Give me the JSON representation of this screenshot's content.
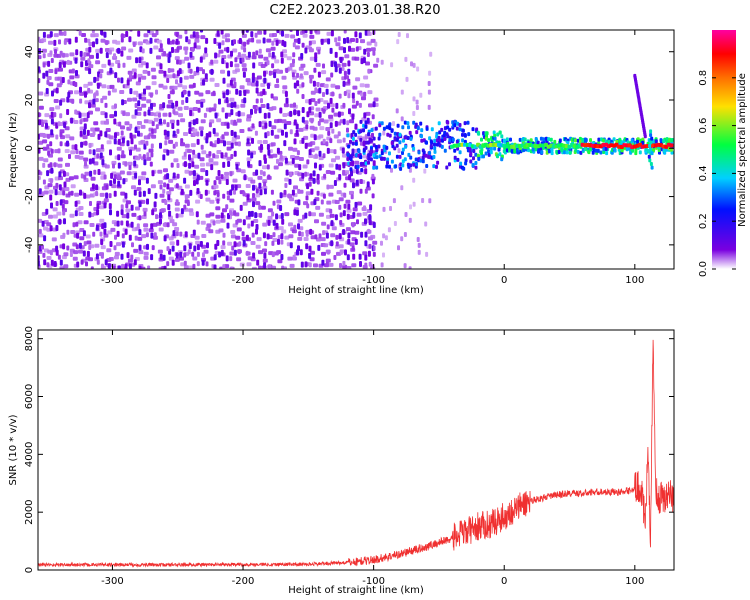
{
  "title": "C2E2.2023.203.01.38.R20",
  "chart_data": [
    {
      "type": "heatmap",
      "xlabel": "Height of straight line (km)",
      "ylabel": "Frequency (Hz)",
      "xlim": [
        -357,
        130
      ],
      "ylim": [
        -50,
        49
      ],
      "xticks": [
        -300,
        -200,
        -100,
        0,
        100
      ],
      "yticks": [
        -40,
        -20,
        0,
        20,
        40
      ],
      "colorbar": {
        "label": "Normalized spectral amplitude",
        "range": [
          0,
          1
        ],
        "ticks": [
          0.0,
          0.2,
          0.4,
          0.6,
          0.8
        ],
        "colors": [
          "#ffffff",
          "#7a00e0",
          "#0010ff",
          "#00d0ff",
          "#00ff40",
          "#ffe000",
          "#ff7000",
          "#ff0000",
          "#ff00a0"
        ]
      },
      "features": {
        "noise_region_x": [
          -357,
          -100
        ],
        "tail_noise_x": [
          -100,
          -55
        ],
        "narrowband_line": {
          "x_start": -120,
          "x_end": 130,
          "frequency_hz": 1
        },
        "chirp_line": {
          "x_start": 100,
          "x_end": 108,
          "f_start": 30,
          "f_end": 5
        },
        "burst_x": 112
      }
    },
    {
      "type": "line",
      "xlabel": "Height of straight line (km)",
      "ylabel": "SNR (10 * v/v)",
      "xlim": [
        -357,
        130
      ],
      "ylim": [
        0,
        8300
      ],
      "xticks": [
        -300,
        -200,
        -100,
        0,
        100
      ],
      "yticks": [
        0,
        2000,
        4000,
        6000,
        8000
      ],
      "color": "#f03030",
      "series": [
        {
          "x": [
            -357,
            -300,
            -250,
            -200,
            -150,
            -120,
            -100,
            -80,
            -60,
            -40,
            -30,
            -20,
            -10,
            0,
            10,
            20,
            30,
            40,
            50,
            60,
            70,
            80,
            90,
            100,
            105,
            108,
            110,
            112,
            114,
            116,
            120,
            130
          ],
          "y": [
            180,
            180,
            180,
            190,
            200,
            260,
            350,
            550,
            800,
            1100,
            1300,
            1500,
            1600,
            1850,
            2150,
            2400,
            2500,
            2600,
            2650,
            2650,
            2700,
            2700,
            2700,
            2800,
            2900,
            1500,
            4000,
            1000,
            8300,
            2600,
            2500,
            2600
          ]
        }
      ]
    }
  ]
}
